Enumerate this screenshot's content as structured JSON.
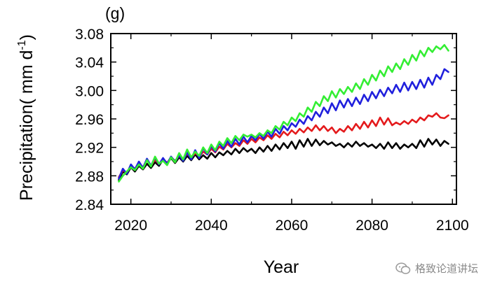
{
  "chart_data": {
    "type": "line",
    "panel_label": "(g)",
    "title": "",
    "xlabel": "Year",
    "ylabel": "Precipitation( mm d",
    "ylabel_superscript": "-1",
    "ylabel_close": ")",
    "xlim": [
      2015,
      2101
    ],
    "ylim": [
      2.84,
      3.08
    ],
    "xticks": [
      2020,
      2040,
      2060,
      2080,
      2100
    ],
    "yticks": [
      "2.84",
      "2.88",
      "2.92",
      "2.96",
      "3.00",
      "3.04",
      "3.08"
    ],
    "legend": "none",
    "grid": false,
    "series": [
      {
        "color": "#000000",
        "x": [
          2017,
          2018,
          2019,
          2020,
          2021,
          2022,
          2023,
          2024,
          2025,
          2026,
          2027,
          2028,
          2029,
          2030,
          2031,
          2032,
          2033,
          2034,
          2035,
          2036,
          2037,
          2038,
          2039,
          2040,
          2041,
          2042,
          2043,
          2044,
          2045,
          2046,
          2047,
          2048,
          2049,
          2050,
          2051,
          2052,
          2053,
          2054,
          2055,
          2056,
          2057,
          2058,
          2059,
          2060,
          2061,
          2062,
          2063,
          2064,
          2065,
          2066,
          2067,
          2068,
          2069,
          2070,
          2071,
          2072,
          2073,
          2074,
          2075,
          2076,
          2077,
          2078,
          2079,
          2080,
          2081,
          2082,
          2083,
          2084,
          2085,
          2086,
          2087,
          2088,
          2089,
          2090,
          2091,
          2092,
          2093,
          2094,
          2095,
          2096,
          2097,
          2098,
          2099
        ],
        "values": [
          2.874,
          2.886,
          2.882,
          2.892,
          2.886,
          2.894,
          2.889,
          2.897,
          2.891,
          2.899,
          2.894,
          2.903,
          2.897,
          2.905,
          2.898,
          2.906,
          2.9,
          2.908,
          2.902,
          2.91,
          2.903,
          2.909,
          2.904,
          2.912,
          2.906,
          2.913,
          2.909,
          2.915,
          2.91,
          2.918,
          2.912,
          2.919,
          2.914,
          2.918,
          2.912,
          2.92,
          2.914,
          2.922,
          2.915,
          2.924,
          2.917,
          2.926,
          2.919,
          2.928,
          2.918,
          2.93,
          2.921,
          2.932,
          2.922,
          2.931,
          2.923,
          2.929,
          2.924,
          2.927,
          2.922,
          2.925,
          2.92,
          2.926,
          2.921,
          2.928,
          2.922,
          2.926,
          2.921,
          2.924,
          2.919,
          2.925,
          2.918,
          2.927,
          2.919,
          2.926,
          2.918,
          2.924,
          2.92,
          2.925,
          2.919,
          2.93,
          2.921,
          2.932,
          2.924,
          2.931,
          2.922,
          2.929,
          2.925
        ]
      },
      {
        "color": "#e41a1c",
        "x": [
          2017,
          2018,
          2019,
          2020,
          2021,
          2022,
          2023,
          2024,
          2025,
          2026,
          2027,
          2028,
          2029,
          2030,
          2031,
          2032,
          2033,
          2034,
          2035,
          2036,
          2037,
          2038,
          2039,
          2040,
          2041,
          2042,
          2043,
          2044,
          2045,
          2046,
          2047,
          2048,
          2049,
          2050,
          2051,
          2052,
          2053,
          2054,
          2055,
          2056,
          2057,
          2058,
          2059,
          2060,
          2061,
          2062,
          2063,
          2064,
          2065,
          2066,
          2067,
          2068,
          2069,
          2070,
          2071,
          2072,
          2073,
          2074,
          2075,
          2076,
          2077,
          2078,
          2079,
          2080,
          2081,
          2082,
          2083,
          2084,
          2085,
          2086,
          2087,
          2088,
          2089,
          2090,
          2091,
          2092,
          2093,
          2094,
          2095,
          2096,
          2097,
          2098,
          2099
        ],
        "values": [
          2.878,
          2.888,
          2.884,
          2.894,
          2.89,
          2.898,
          2.892,
          2.902,
          2.894,
          2.903,
          2.896,
          2.904,
          2.898,
          2.906,
          2.901,
          2.908,
          2.903,
          2.911,
          2.905,
          2.912,
          2.907,
          2.914,
          2.91,
          2.918,
          2.913,
          2.921,
          2.917,
          2.925,
          2.92,
          2.926,
          2.922,
          2.93,
          2.925,
          2.932,
          2.927,
          2.934,
          2.93,
          2.937,
          2.932,
          2.939,
          2.934,
          2.942,
          2.937,
          2.944,
          2.939,
          2.946,
          2.941,
          2.948,
          2.943,
          2.951,
          2.944,
          2.95,
          2.943,
          2.948,
          2.94,
          2.946,
          2.942,
          2.95,
          2.944,
          2.953,
          2.946,
          2.956,
          2.948,
          2.958,
          2.95,
          2.962,
          2.952,
          2.961,
          2.951,
          2.955,
          2.952,
          2.957,
          2.953,
          2.959,
          2.955,
          2.962,
          2.958,
          2.965,
          2.963,
          2.968,
          2.962,
          2.961,
          2.965
        ]
      },
      {
        "color": "#2020dd",
        "x": [
          2017,
          2018,
          2019,
          2020,
          2021,
          2022,
          2023,
          2024,
          2025,
          2026,
          2027,
          2028,
          2029,
          2030,
          2031,
          2032,
          2033,
          2034,
          2035,
          2036,
          2037,
          2038,
          2039,
          2040,
          2041,
          2042,
          2043,
          2044,
          2045,
          2046,
          2047,
          2048,
          2049,
          2050,
          2051,
          2052,
          2053,
          2054,
          2055,
          2056,
          2057,
          2058,
          2059,
          2060,
          2061,
          2062,
          2063,
          2064,
          2065,
          2066,
          2067,
          2068,
          2069,
          2070,
          2071,
          2072,
          2073,
          2074,
          2075,
          2076,
          2077,
          2078,
          2079,
          2080,
          2081,
          2082,
          2083,
          2084,
          2085,
          2086,
          2087,
          2088,
          2089,
          2090,
          2091,
          2092,
          2093,
          2094,
          2095,
          2096,
          2097,
          2098,
          2099
        ],
        "values": [
          2.876,
          2.89,
          2.883,
          2.896,
          2.889,
          2.9,
          2.891,
          2.904,
          2.894,
          2.906,
          2.896,
          2.905,
          2.897,
          2.907,
          2.9,
          2.909,
          2.901,
          2.913,
          2.903,
          2.916,
          2.905,
          2.919,
          2.91,
          2.922,
          2.914,
          2.926,
          2.918,
          2.929,
          2.921,
          2.932,
          2.924,
          2.935,
          2.927,
          2.936,
          2.93,
          2.939,
          2.932,
          2.942,
          2.935,
          2.946,
          2.939,
          2.95,
          2.944,
          2.954,
          2.949,
          2.959,
          2.953,
          2.964,
          2.958,
          2.97,
          2.963,
          2.976,
          2.968,
          2.982,
          2.972,
          2.986,
          2.976,
          2.988,
          2.978,
          2.99,
          2.981,
          2.994,
          2.985,
          2.998,
          2.989,
          3.001,
          2.992,
          3.004,
          2.996,
          3.008,
          2.998,
          3.011,
          3.0,
          3.012,
          3.002,
          3.015,
          3.004,
          3.018,
          3.008,
          3.022,
          3.016,
          3.03,
          3.026
        ]
      },
      {
        "color": "#33ee33",
        "x": [
          2017,
          2018,
          2019,
          2020,
          2021,
          2022,
          2023,
          2024,
          2025,
          2026,
          2027,
          2028,
          2029,
          2030,
          2031,
          2032,
          2033,
          2034,
          2035,
          2036,
          2037,
          2038,
          2039,
          2040,
          2041,
          2042,
          2043,
          2044,
          2045,
          2046,
          2047,
          2048,
          2049,
          2050,
          2051,
          2052,
          2053,
          2054,
          2055,
          2056,
          2057,
          2058,
          2059,
          2060,
          2061,
          2062,
          2063,
          2064,
          2065,
          2066,
          2067,
          2068,
          2069,
          2070,
          2071,
          2072,
          2073,
          2074,
          2075,
          2076,
          2077,
          2078,
          2079,
          2080,
          2081,
          2082,
          2083,
          2084,
          2085,
          2086,
          2087,
          2088,
          2089,
          2090,
          2091,
          2092,
          2093,
          2094,
          2095,
          2096,
          2097,
          2098,
          2099
        ],
        "values": [
          2.872,
          2.88,
          2.886,
          2.892,
          2.888,
          2.896,
          2.89,
          2.902,
          2.893,
          2.907,
          2.897,
          2.901,
          2.895,
          2.906,
          2.899,
          2.912,
          2.903,
          2.917,
          2.906,
          2.914,
          2.908,
          2.92,
          2.912,
          2.924,
          2.916,
          2.928,
          2.922,
          2.933,
          2.926,
          2.936,
          2.93,
          2.938,
          2.935,
          2.938,
          2.934,
          2.94,
          2.936,
          2.944,
          2.94,
          2.95,
          2.945,
          2.956,
          2.951,
          2.962,
          2.957,
          2.968,
          2.963,
          2.976,
          2.97,
          2.984,
          2.978,
          2.992,
          2.985,
          2.999,
          2.99,
          3.002,
          2.995,
          3.005,
          2.998,
          3.01,
          3.002,
          3.016,
          3.008,
          3.022,
          3.014,
          3.028,
          3.02,
          3.034,
          3.026,
          3.038,
          3.03,
          3.044,
          3.036,
          3.05,
          3.042,
          3.056,
          3.048,
          3.06,
          3.054,
          3.062,
          3.058,
          3.064,
          3.056
        ]
      }
    ]
  },
  "watermark": {
    "text": "格致论道讲坛",
    "icon": "wechat-icon"
  }
}
